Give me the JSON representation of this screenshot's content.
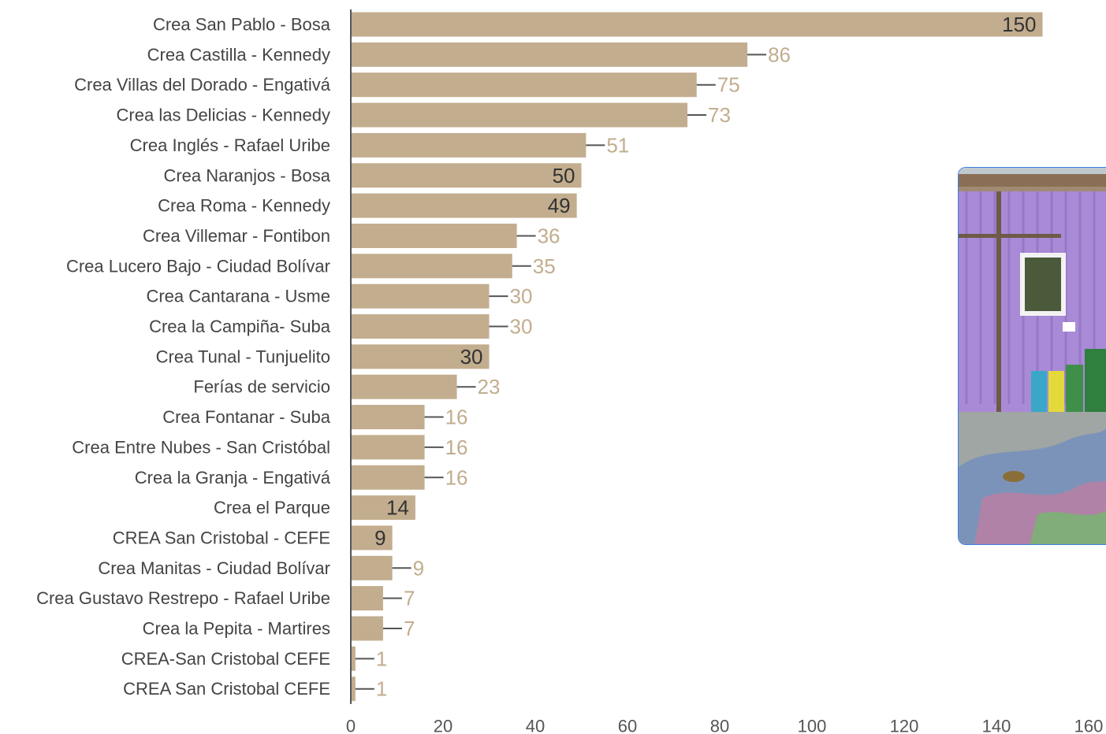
{
  "chart_data": {
    "type": "bar",
    "orientation": "horizontal",
    "categories": [
      "Crea San Pablo - Bosa",
      "Crea Castilla - Kennedy",
      "Crea Villas del Dorado - Engativá",
      "Crea las Delicias - Kennedy",
      "Crea Inglés - Rafael Uribe",
      "Crea Naranjos - Bosa",
      "Crea Roma - Kennedy",
      "Crea Villemar - Fontibon",
      "Crea Lucero Bajo - Ciudad Bolívar",
      "Crea Cantarana - Usme",
      "Crea la Campiña- Suba",
      "Crea Tunal - Tunjuelito",
      "Ferías de servicio",
      "Crea Fontanar - Suba",
      "Crea Entre Nubes - San Cristóbal",
      "Crea la Granja - Engativá",
      "Crea el Parque",
      "CREA San Cristobal - CEFE",
      "Crea Manitas - Ciudad Bolívar",
      "Crea Gustavo Restrepo - Rafael Uribe",
      "Crea la Pepita - Martires",
      "CREA-San Cristobal CEFE",
      "CREA San Cristobal CEFE"
    ],
    "values": [
      150,
      86,
      75,
      73,
      51,
      50,
      49,
      36,
      35,
      30,
      30,
      30,
      23,
      16,
      16,
      16,
      14,
      9,
      9,
      7,
      7,
      1,
      1
    ],
    "label_inside": [
      true,
      false,
      false,
      false,
      false,
      true,
      true,
      false,
      false,
      false,
      false,
      true,
      false,
      false,
      false,
      false,
      true,
      true,
      false,
      false,
      false,
      false,
      false
    ],
    "xlim": [
      0,
      160
    ],
    "xticks": [
      0,
      20,
      40,
      60,
      80,
      100,
      120,
      140,
      160
    ],
    "title": "",
    "xlabel": "",
    "ylabel": "",
    "grid": false,
    "legend": "none"
  },
  "colors": {
    "bar": "#c2ad8e",
    "label_outside": "#c2ad8e",
    "label_inside": "#333333",
    "category_text": "#444444",
    "tick_text": "#555555",
    "axis_line": "#555555",
    "inset_border": "#3f7fe0"
  },
  "inset_photo": {
    "icon": "photo-of-purple-container-building-icon"
  }
}
